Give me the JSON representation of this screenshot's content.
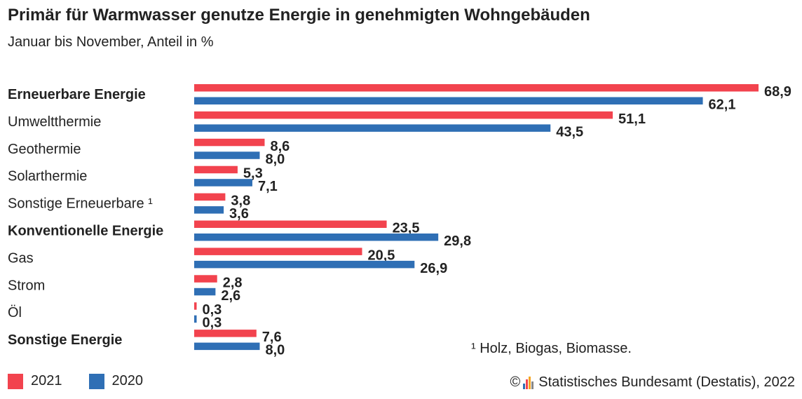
{
  "header": {
    "title": "Primär für Warmwasser genutze Energie in genehmigten Wohngebäuden",
    "subtitle": "Januar bis November, Anteil in %"
  },
  "colors": {
    "2021": "#f2434e",
    "2020": "#2f6fb5"
  },
  "chart_data": {
    "type": "bar",
    "orientation": "horizontal",
    "categories": [
      "Erneuerbare Energie",
      "Umweltthermie",
      "Geothermie",
      "Solarthermie",
      "Sonstige Erneuerbare ¹",
      "Konventionelle Energie",
      "Gas",
      "Strom",
      "Öl",
      "Sonstige Energie"
    ],
    "bold_categories": [
      "Erneuerbare Energie",
      "Konventionelle Energie",
      "Sonstige Energie"
    ],
    "series": [
      {
        "name": "2021",
        "values": [
          68.9,
          51.1,
          8.6,
          5.3,
          3.8,
          23.5,
          20.5,
          2.8,
          0.3,
          7.6
        ],
        "labels": [
          "68,9",
          "51,1",
          "8,6",
          "5,3",
          "3,8",
          "23,5",
          "20,5",
          "2,8",
          "0,3",
          "7,6"
        ]
      },
      {
        "name": "2020",
        "values": [
          62.1,
          43.5,
          8.0,
          7.1,
          3.6,
          29.8,
          26.9,
          2.6,
          0.3,
          8.0
        ],
        "labels": [
          "62,1",
          "43,5",
          "8,0",
          "7,1",
          "3,6",
          "29,8",
          "26,9",
          "2,6",
          "0,3",
          "8,0"
        ]
      }
    ],
    "xlim": [
      0,
      68.9
    ],
    "grid": false,
    "legend": "bottom-left"
  },
  "legend": {
    "items": [
      "2021",
      "2020"
    ]
  },
  "footnote": "¹ Holz, Biogas, Biomasse.",
  "source": {
    "copyright": "©",
    "text": "Statistisches Bundesamt (Destatis), 2022",
    "logo_icon": "destatis-logo-icon"
  }
}
